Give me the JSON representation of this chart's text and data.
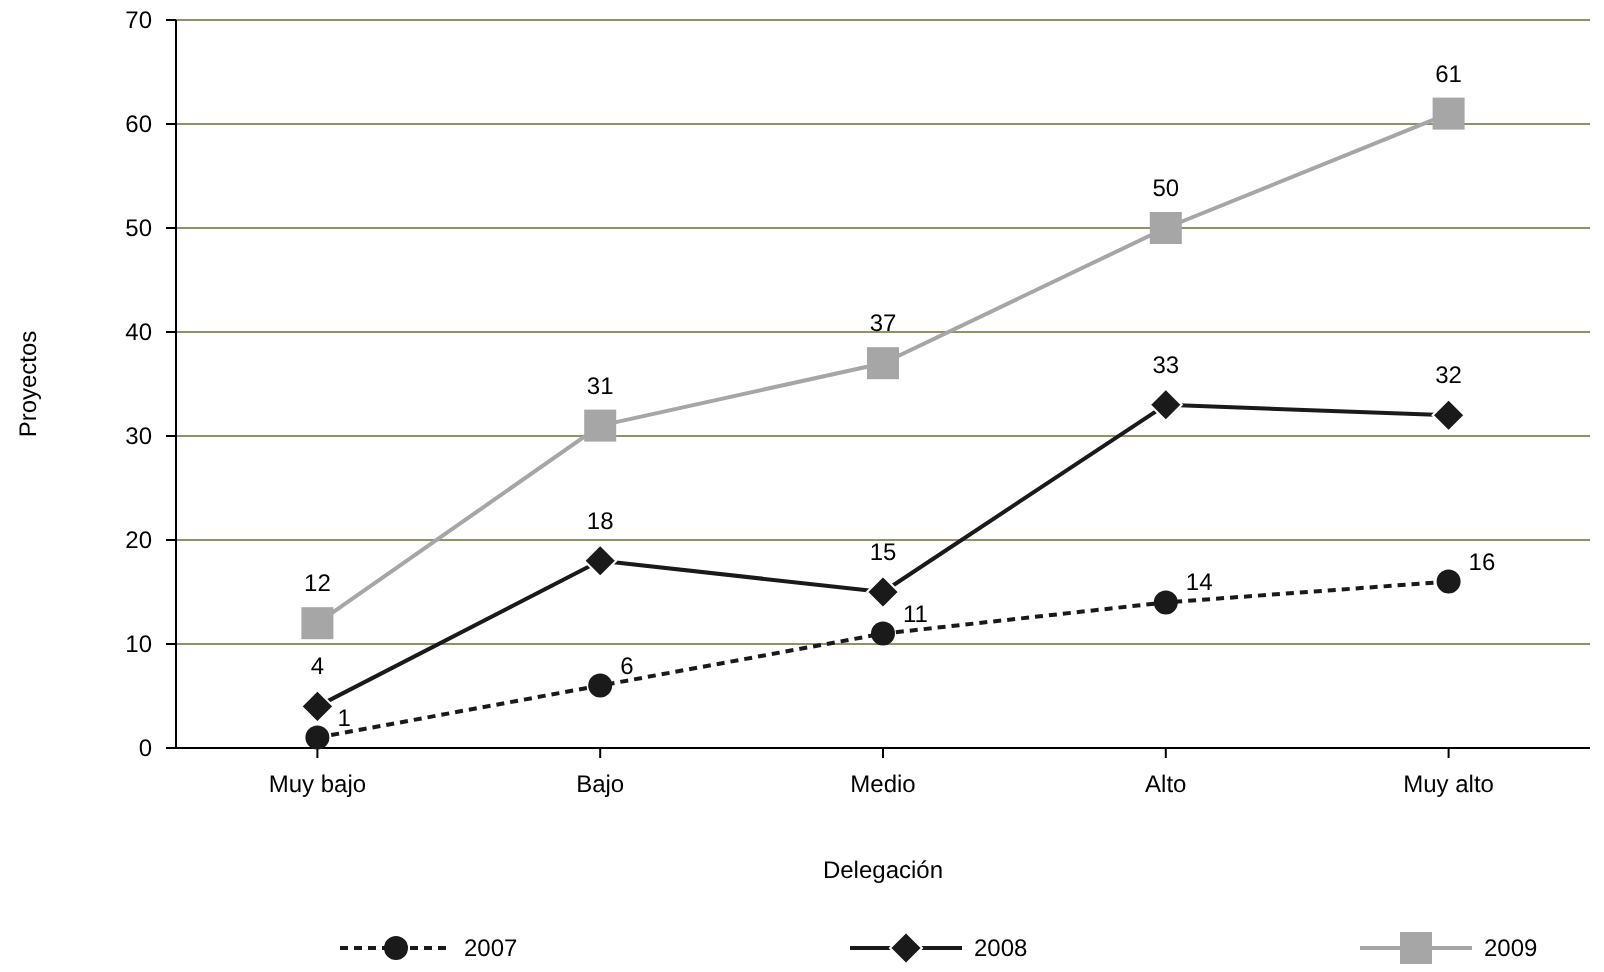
{
  "chart_data": {
    "type": "line",
    "xlabel": "Delegación",
    "ylabel": "Proyectos",
    "categories": [
      "Muy bajo",
      "Bajo",
      "Medio",
      "Alto",
      "Muy alto"
    ],
    "series": [
      {
        "name": "2007",
        "color": "#1a1a1a",
        "marker": "circle",
        "line_style": "dashed",
        "values": [
          1,
          6,
          11,
          14,
          16
        ]
      },
      {
        "name": "2008",
        "color": "#1a1a1a",
        "marker": "diamond",
        "line_style": "solid",
        "values": [
          4,
          18,
          15,
          33,
          32
        ]
      },
      {
        "name": "2009",
        "color": "#a6a6a6",
        "marker": "square",
        "line_style": "solid",
        "values": [
          12,
          31,
          37,
          50,
          61
        ]
      }
    ],
    "ylim": [
      0,
      70
    ],
    "yticks": [
      0,
      10,
      20,
      30,
      40,
      50,
      60,
      70
    ],
    "grid": "y",
    "legend": "bottom",
    "data_labels": true
  }
}
